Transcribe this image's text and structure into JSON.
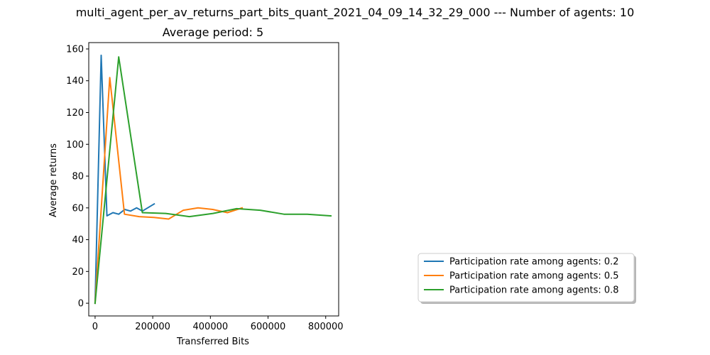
{
  "chart_data": {
    "type": "line",
    "title": "multi_agent_per_av_returns_part_bits_quant_2021_04_09_14_32_29_000 --- Number of agents: 10",
    "subtitle": "Average period: 5",
    "xlabel": "Transferred Bits",
    "ylabel": "Average returns",
    "xlim": [
      -22000,
      845000
    ],
    "ylim": [
      -8,
      164
    ],
    "xticks": [
      0,
      200000,
      400000,
      600000,
      800000
    ],
    "yticks": [
      0,
      20,
      40,
      60,
      80,
      100,
      120,
      140,
      160
    ],
    "grid": false,
    "legend_position": "lower-right, outside axes",
    "series": [
      {
        "name": "Participation rate among agents: 0.2",
        "color": "#1f77b4",
        "x": [
          0,
          21000,
          41000,
          62000,
          82000,
          103000,
          123000,
          144000,
          164000,
          205000
        ],
        "y": [
          0,
          156,
          55,
          57,
          56,
          59,
          58,
          60,
          58,
          62.5
        ]
      },
      {
        "name": "Participation rate among agents: 0.5",
        "color": "#ff7f0e",
        "x": [
          0,
          51000,
          102000,
          153000,
          204000,
          255000,
          306000,
          357000,
          408000,
          459000,
          510000
        ],
        "y": [
          0,
          142,
          56,
          54.5,
          54,
          53,
          58.5,
          60,
          59,
          57,
          60
        ]
      },
      {
        "name": "Participation rate among agents: 0.8",
        "color": "#2ca02c",
        "x": [
          0,
          82000,
          164000,
          245000,
          327000,
          409000,
          491000,
          573000,
          655000,
          736000,
          818000
        ],
        "y": [
          0,
          155,
          57,
          56.5,
          54.5,
          56.5,
          59.5,
          58.5,
          56,
          56,
          55
        ]
      }
    ]
  }
}
